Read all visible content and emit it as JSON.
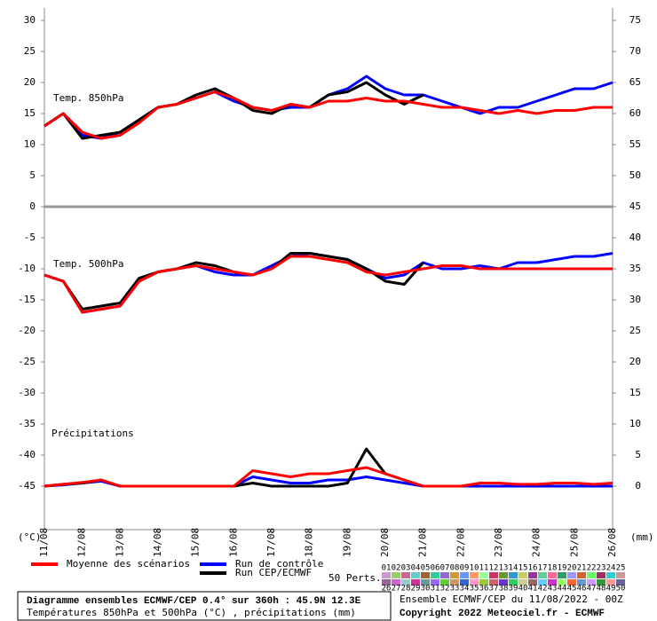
{
  "chart_data": {
    "type": "line",
    "title": "Diagramme ensembles ECMWF/CEP 0.4° sur 360h : 45.9N 12.3E",
    "subtitle": "Températures 850hPa et 500hPa (°C) , précipitations (mm)",
    "run_info": "Ensemble ECMWF/CEP du 11/08/2022 - 00Z",
    "copyright": "Copyright 2022 Meteociel.fr - ECMWF",
    "y_label": "(°C)",
    "y2_label": "(mm)",
    "panels": {
      "t850": "Temp. 850hPa",
      "t500": "Temp. 500hPa",
      "precip": "Précipitations"
    },
    "x": [
      0,
      12,
      24,
      36,
      48,
      60,
      72,
      84,
      96,
      108,
      120,
      132,
      144,
      156,
      168,
      180,
      192,
      204,
      216,
      228,
      240,
      252,
      264,
      276,
      288,
      300,
      312,
      324,
      336,
      348,
      360
    ],
    "xlim": [
      0,
      360
    ],
    "xticks": [
      {
        "value": 0,
        "label": "11/08"
      },
      {
        "value": 24,
        "label": "12/08"
      },
      {
        "value": 48,
        "label": "13/08"
      },
      {
        "value": 72,
        "label": "14/08"
      },
      {
        "value": 96,
        "label": "15/08"
      },
      {
        "value": 120,
        "label": "16/08"
      },
      {
        "value": 144,
        "label": "17/08"
      },
      {
        "value": 168,
        "label": "18/08"
      },
      {
        "value": 192,
        "label": "19/08"
      },
      {
        "value": 216,
        "label": "20/08"
      },
      {
        "value": 240,
        "label": "21/08"
      },
      {
        "value": 264,
        "label": "22/08"
      },
      {
        "value": 288,
        "label": "23/08"
      },
      {
        "value": 312,
        "label": "24/08"
      },
      {
        "value": 336,
        "label": "25/08"
      },
      {
        "value": 360,
        "label": "26/08"
      }
    ],
    "ylim": [
      -52,
      32
    ],
    "yticks": [
      30,
      25,
      20,
      15,
      10,
      5,
      0,
      -5,
      -10,
      -15,
      -20,
      -25,
      -30,
      -35,
      -40,
      -45
    ],
    "y2lim": [
      -7,
      77
    ],
    "y2ticks": [
      75,
      70,
      65,
      60,
      55,
      50,
      45,
      40,
      35,
      30,
      25,
      20,
      15,
      10,
      5,
      0
    ],
    "series": [
      {
        "name": "Moyenne des scénarios",
        "color": "#ff0000",
        "values": {
          "t850": [
            13,
            15,
            12,
            11,
            11.5,
            13.5,
            16,
            16.5,
            17.5,
            18.5,
            17.5,
            16,
            15.5,
            16.5,
            16,
            17,
            17,
            17.5,
            17,
            17,
            16.5,
            16,
            16,
            15.5,
            15,
            15.5,
            15,
            15.5,
            15.5,
            16,
            16
          ],
          "t500": [
            -11,
            -12,
            -17,
            -16.5,
            -16,
            -12,
            -10.5,
            -10,
            -9.5,
            -10,
            -10.5,
            -11,
            -10,
            -8,
            -8,
            -8.5,
            -9,
            -10.5,
            -11,
            -10.5,
            -10,
            -9.5,
            -9.5,
            -10,
            -10,
            -10,
            -10,
            -10,
            -10,
            -10,
            -10
          ],
          "precip": [
            0,
            0.3,
            0.6,
            1,
            0,
            0,
            0,
            0,
            0,
            0,
            0,
            2.5,
            2,
            1.5,
            2,
            2,
            2.5,
            3,
            2,
            1,
            0,
            0,
            0,
            0.5,
            0.5,
            0.3,
            0.3,
            0.5,
            0.5,
            0.3,
            0.5
          ]
        }
      },
      {
        "name": "Run de contrôle",
        "color": "#0000ff",
        "values": {
          "t850": [
            13,
            15,
            11.5,
            11,
            12,
            14,
            16,
            16.5,
            17.5,
            18.5,
            17,
            16,
            15.5,
            16,
            16,
            18,
            19,
            21,
            19,
            18,
            18,
            17,
            16,
            15,
            16,
            16,
            17,
            18,
            19,
            19,
            20
          ],
          "t500": [
            -11,
            -12,
            -17,
            -16.5,
            -16,
            -12,
            -10.5,
            -10,
            -9.5,
            -10.5,
            -11,
            -11,
            -9.5,
            -8,
            -7.5,
            -8,
            -8.5,
            -10,
            -11.5,
            -11,
            -9,
            -10,
            -10,
            -9.5,
            -10,
            -9,
            -9,
            -8.5,
            -8,
            -8,
            -7.5
          ],
          "precip": [
            0,
            0.2,
            0.5,
            0.8,
            0,
            0,
            0,
            0,
            0,
            0,
            0,
            1.5,
            1,
            0.5,
            0.5,
            1,
            1,
            1.5,
            1,
            0.5,
            0,
            0,
            0,
            0,
            0,
            0,
            0,
            0,
            0,
            0,
            0
          ]
        }
      },
      {
        "name": "Run CEP/ECMWF",
        "color": "#000000",
        "values": {
          "t850": [
            13,
            15,
            11,
            11.5,
            12,
            14,
            16,
            16.5,
            18,
            19,
            17.5,
            15.5,
            15,
            16.5,
            16,
            18,
            18.5,
            20,
            18,
            16.5,
            18,
            null,
            null,
            null,
            null,
            null,
            null,
            null,
            null,
            null,
            null
          ],
          "t500": [
            -11,
            -12,
            -16.5,
            -16,
            -15.5,
            -11.5,
            -10.5,
            -10,
            -9,
            -9.5,
            -10.5,
            -11,
            -10,
            -7.5,
            -7.5,
            -8,
            -8.5,
            -10,
            -12,
            -12.5,
            -9,
            null,
            null,
            null,
            null,
            null,
            null,
            null,
            null,
            null,
            null
          ],
          "precip": [
            0,
            0.3,
            0.5,
            1,
            0,
            0,
            0,
            0,
            0,
            0,
            0,
            0.5,
            0,
            0,
            0,
            0,
            0.5,
            6,
            2,
            1,
            0,
            null,
            null,
            null,
            null,
            null,
            null,
            null,
            null,
            null,
            null
          ]
        }
      }
    ],
    "perturbations": {
      "label": "50 Perts.",
      "members": [
        {
          "label": "01",
          "color": "#cc99cc"
        },
        {
          "label": "02",
          "color": "#99cc66"
        },
        {
          "label": "03",
          "color": "#cc6699"
        },
        {
          "label": "04",
          "color": "#66cccc"
        },
        {
          "label": "05",
          "color": "#996633"
        },
        {
          "label": "06",
          "color": "#33cc99"
        },
        {
          "label": "07",
          "color": "#9966cc"
        },
        {
          "label": "08",
          "color": "#cc9933"
        },
        {
          "label": "09",
          "color": "#6699ff"
        },
        {
          "label": "10",
          "color": "#ff9966"
        },
        {
          "label": "11",
          "color": "#99ff99"
        },
        {
          "label": "12",
          "color": "#cc3366"
        },
        {
          "label": "13",
          "color": "#669933"
        },
        {
          "label": "14",
          "color": "#3399cc"
        },
        {
          "label": "15",
          "color": "#cccc66"
        },
        {
          "label": "16",
          "color": "#993399"
        },
        {
          "label": "17",
          "color": "#66cc99"
        },
        {
          "label": "18",
          "color": "#ff6699"
        },
        {
          "label": "19",
          "color": "#339966"
        },
        {
          "label": "20",
          "color": "#9999ff"
        },
        {
          "label": "21",
          "color": "#cc6633"
        },
        {
          "label": "22",
          "color": "#66ff66"
        },
        {
          "label": "23",
          "color": "#993366"
        },
        {
          "label": "24",
          "color": "#33cccc"
        },
        {
          "label": "25",
          "color": "#cc9999"
        },
        {
          "label": "26",
          "color": "#996699"
        },
        {
          "label": "27",
          "color": "#cc66cc"
        },
        {
          "label": "28",
          "color": "#99cccc"
        },
        {
          "label": "29",
          "color": "#cc3399"
        },
        {
          "label": "30",
          "color": "#669999"
        },
        {
          "label": "31",
          "color": "#9966ff"
        },
        {
          "label": "32",
          "color": "#66cc33"
        },
        {
          "label": "33",
          "color": "#cc9966"
        },
        {
          "label": "34",
          "color": "#3366cc"
        },
        {
          "label": "35",
          "color": "#ff99cc"
        },
        {
          "label": "36",
          "color": "#99cc33"
        },
        {
          "label": "37",
          "color": "#cc6666"
        },
        {
          "label": "38",
          "color": "#6633cc"
        },
        {
          "label": "39",
          "color": "#33cc66"
        },
        {
          "label": "40",
          "color": "#cccc99"
        },
        {
          "label": "41",
          "color": "#996666"
        },
        {
          "label": "42",
          "color": "#66ccff"
        },
        {
          "label": "43",
          "color": "#cc33cc"
        },
        {
          "label": "44",
          "color": "#99ff66"
        },
        {
          "label": "45",
          "color": "#ff6633"
        },
        {
          "label": "46",
          "color": "#6699cc"
        },
        {
          "label": "47",
          "color": "#cc99ff"
        },
        {
          "label": "48",
          "color": "#339933"
        },
        {
          "label": "49",
          "color": "#ff9999"
        },
        {
          "label": "50",
          "color": "#666699"
        }
      ]
    }
  }
}
